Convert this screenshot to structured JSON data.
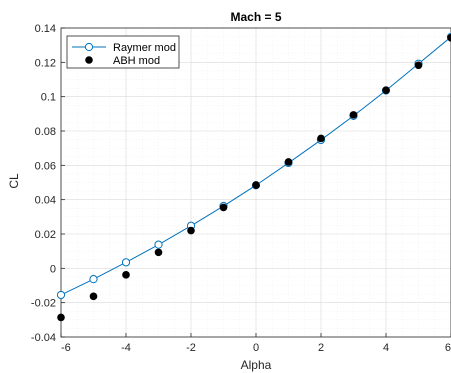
{
  "chart_data": {
    "type": "scatter",
    "title": "Mach = 5",
    "xlabel": "Alpha",
    "ylabel": "CL",
    "xlim": [
      -6,
      6
    ],
    "ylim": [
      -0.04,
      0.14
    ],
    "xticks": [
      -6,
      -4,
      -2,
      0,
      2,
      4,
      6
    ],
    "xtick_labels": [
      "-6",
      "-4",
      "-2",
      "0",
      "2",
      "4",
      "6"
    ],
    "yticks": [
      -0.04,
      -0.02,
      0,
      0.02,
      0.04,
      0.06,
      0.08,
      0.1,
      0.12,
      0.14
    ],
    "ytick_labels": [
      "-0.04",
      "-0.02",
      "0",
      "0.02",
      "0.04",
      "0.06",
      "0.08",
      "0.1",
      "0.12",
      "0.14"
    ],
    "grid": true,
    "minor_grid": true,
    "legend_position": "top-left",
    "series": [
      {
        "name": "Raymer mod",
        "style": "line-open-circle",
        "color": "#0072BD",
        "x": [
          -6,
          -5,
          -4,
          -3,
          -2,
          -1,
          0,
          1,
          2,
          3,
          4,
          5,
          6
        ],
        "y": [
          -0.0155,
          -0.0063,
          0.0035,
          0.0138,
          0.0248,
          0.0363,
          0.0484,
          0.0614,
          0.0748,
          0.0888,
          0.1036,
          0.1192,
          0.1348
        ]
      },
      {
        "name": "ABH mod",
        "style": "filled-circle",
        "color": "#000000",
        "x": [
          -6,
          -5,
          -4,
          -3,
          -2,
          -1,
          0,
          1,
          2,
          3,
          4,
          5,
          6
        ],
        "y": [
          -0.0286,
          -0.0163,
          -0.0038,
          0.0093,
          0.022,
          0.0355,
          0.0485,
          0.062,
          0.0757,
          0.0894,
          0.1038,
          0.1183,
          0.1343
        ]
      }
    ]
  }
}
